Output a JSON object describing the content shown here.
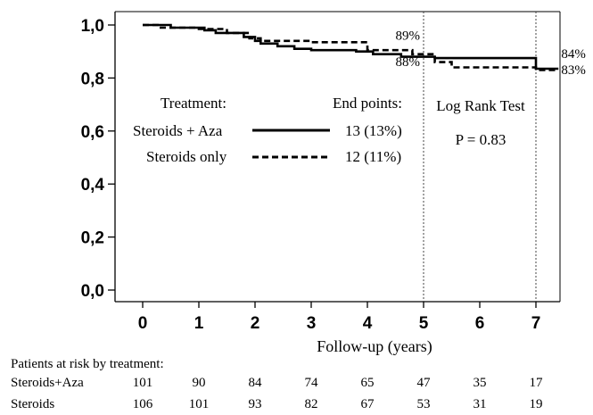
{
  "chart_data": {
    "type": "line",
    "xlabel": "Follow-up (years)",
    "ylabel": "",
    "xlim": [
      -0.5,
      7.4
    ],
    "ylim": [
      0.0,
      1.0
    ],
    "x_ticks": [
      "0",
      "1",
      "2",
      "3",
      "4",
      "5",
      "6",
      "7"
    ],
    "y_ticks": [
      "0,0",
      "0,2",
      "0,4",
      "0,6",
      "0,8",
      "1,0"
    ],
    "grid": false,
    "legend_position": "center-left",
    "legend": {
      "title": "Treatment:",
      "column_title": "End points:"
    },
    "series": [
      {
        "name": "Steroids + Aza",
        "end_points": "13 (13%)",
        "style": "solid",
        "x": [
          0,
          0.5,
          0.5,
          1.1,
          1.1,
          1.3,
          1.3,
          1.8,
          1.8,
          2.0,
          2.0,
          2.1,
          2.1,
          2.4,
          2.4,
          2.7,
          2.7,
          3.0,
          3.0,
          3.8,
          3.8,
          4.1,
          4.1,
          4.6,
          4.6,
          5.2,
          5.2,
          7.0,
          7.0,
          7.4
        ],
        "y": [
          1.0,
          1.0,
          0.99,
          0.99,
          0.98,
          0.98,
          0.97,
          0.97,
          0.955,
          0.955,
          0.94,
          0.94,
          0.93,
          0.93,
          0.92,
          0.92,
          0.91,
          0.91,
          0.905,
          0.905,
          0.9,
          0.9,
          0.89,
          0.89,
          0.88,
          0.88,
          0.875,
          0.875,
          0.835,
          0.835
        ]
      },
      {
        "name": "Steroids only",
        "end_points": "12 (11%)",
        "style": "dashed",
        "x": [
          0,
          0.3,
          0.3,
          1.0,
          1.0,
          1.5,
          1.5,
          1.9,
          1.9,
          2.1,
          2.1,
          3.0,
          3.0,
          4.0,
          4.0,
          4.8,
          4.8,
          5.2,
          5.2,
          5.5,
          5.5,
          7.0,
          7.0,
          7.4
        ],
        "y": [
          1.0,
          1.0,
          0.99,
          0.99,
          0.985,
          0.985,
          0.97,
          0.97,
          0.95,
          0.95,
          0.94,
          0.94,
          0.935,
          0.935,
          0.905,
          0.905,
          0.89,
          0.89,
          0.86,
          0.86,
          0.84,
          0.84,
          0.83,
          0.83
        ]
      }
    ],
    "reference_lines": [
      {
        "axis": "x",
        "value": 5,
        "style": "dotted"
      },
      {
        "axis": "x",
        "value": 7,
        "style": "dotted"
      }
    ],
    "annotations": [
      {
        "text": "89%",
        "x": 4.5,
        "y": 0.945
      },
      {
        "text": "88%",
        "x": 4.5,
        "y": 0.845
      },
      {
        "text": "84%",
        "x": 7.45,
        "y": 0.875
      },
      {
        "text": "83%",
        "x": 7.45,
        "y": 0.815
      }
    ],
    "test": {
      "title": "Log Rank Test",
      "p_value": "P = 0.83"
    },
    "risk_table": {
      "title": "Patients at risk by treatment:",
      "rows": [
        {
          "label": "Steroids+Aza",
          "values": [
            "101",
            "90",
            "84",
            "74",
            "65",
            "47",
            "35",
            "17"
          ]
        },
        {
          "label": "Steroids",
          "values": [
            "106",
            "101",
            "93",
            "82",
            "67",
            "53",
            "31",
            "19"
          ]
        }
      ]
    }
  }
}
